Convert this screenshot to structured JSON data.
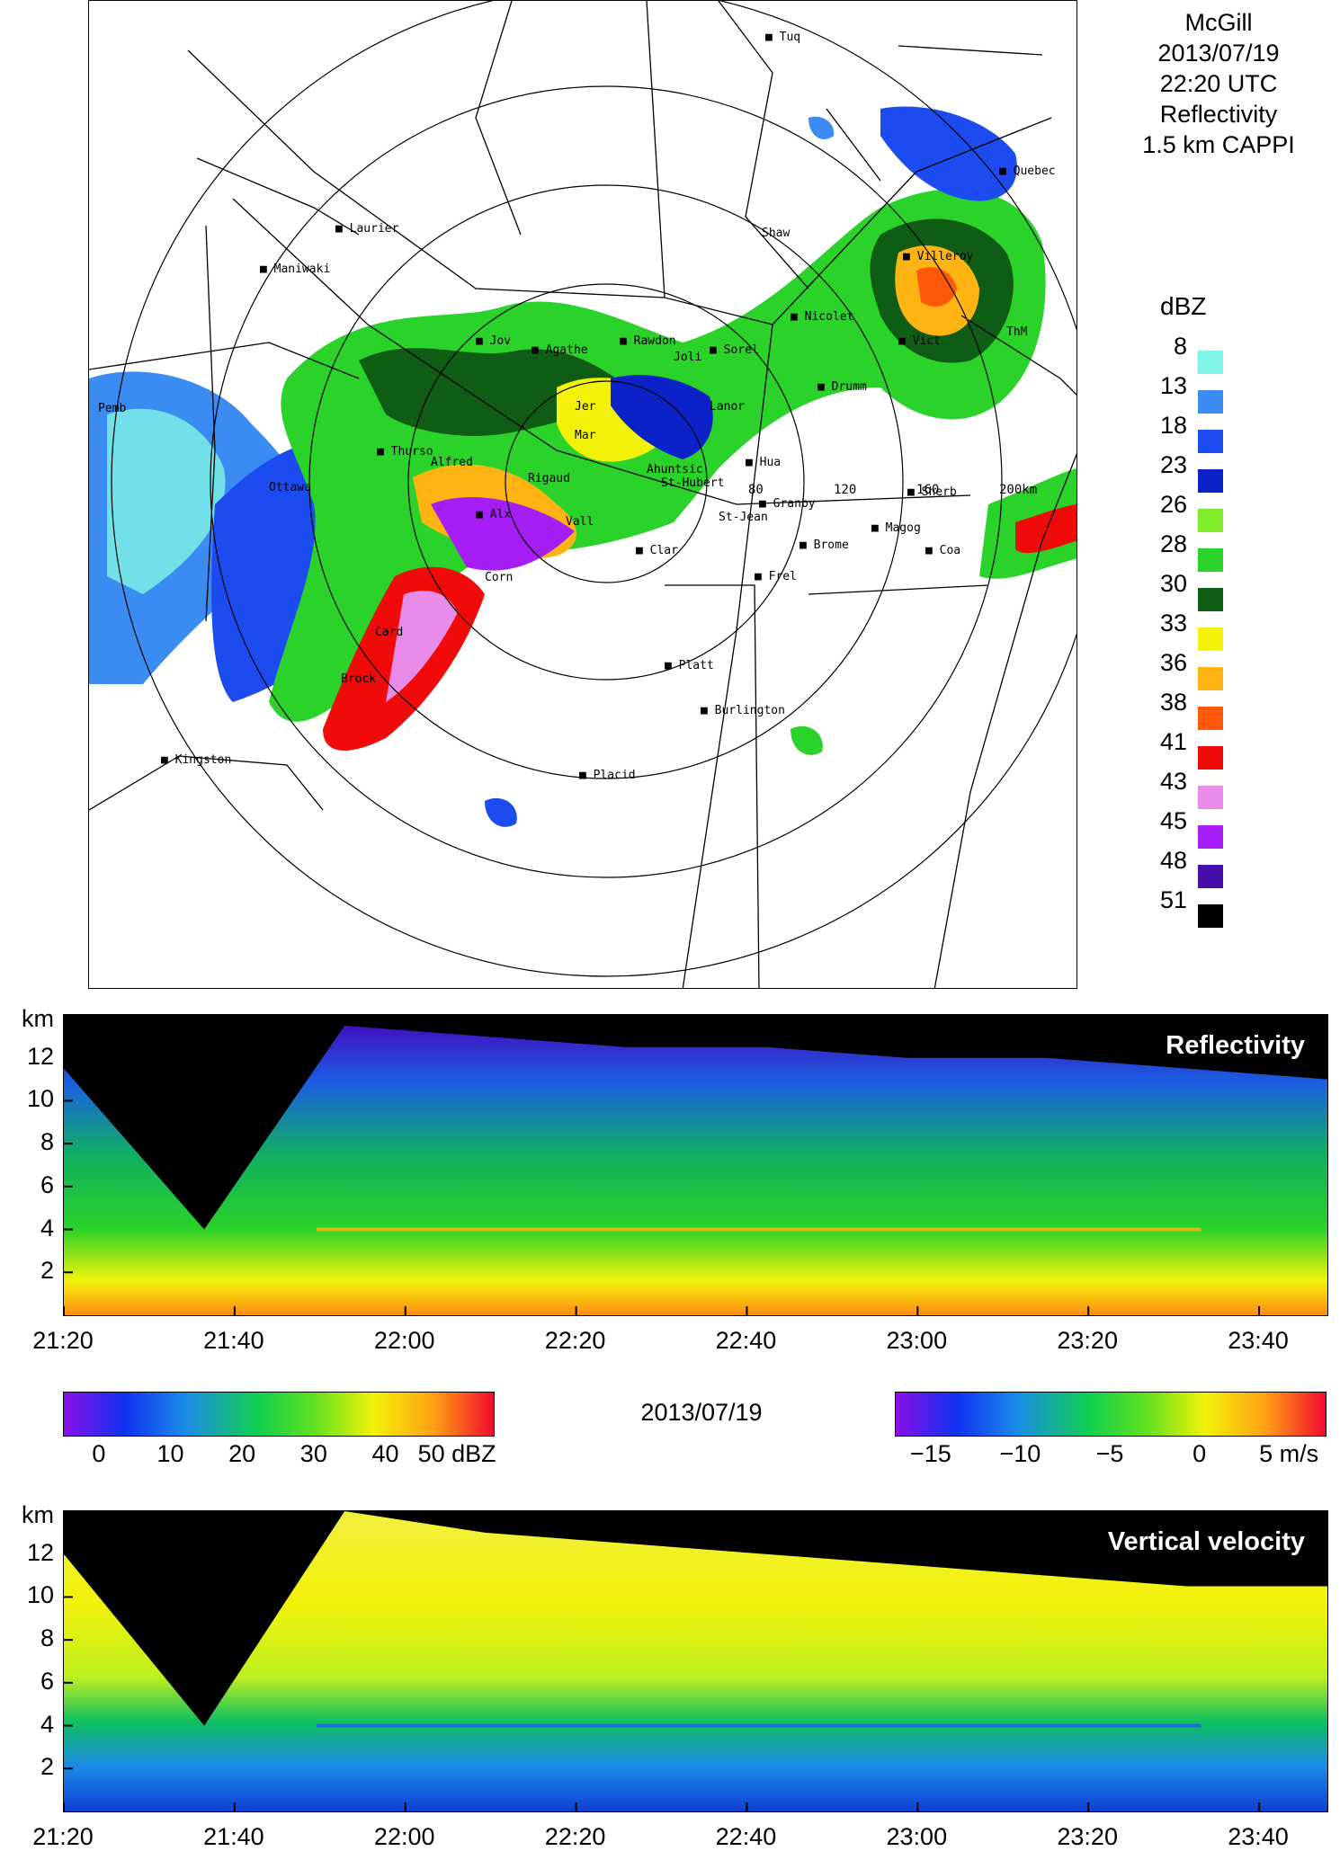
{
  "map": {
    "title_lines": [
      "McGill",
      "2013/07/19",
      "22:20 UTC",
      "Reflectivity",
      "1.5 km CAPPI"
    ],
    "legend_title": "dBZ",
    "legend": [
      {
        "label": "8",
        "color": "#7ff5e6"
      },
      {
        "label": "13",
        "color": "#3a8cf2"
      },
      {
        "label": "18",
        "color": "#1c4cf0"
      },
      {
        "label": "23",
        "color": "#0a22c8"
      },
      {
        "label": "26",
        "color": "#7fec2a"
      },
      {
        "label": "28",
        "color": "#2ad22a"
      },
      {
        "label": "30",
        "color": "#0f5c14"
      },
      {
        "label": "33",
        "color": "#f2f20a"
      },
      {
        "label": "36",
        "color": "#ffb414"
      },
      {
        "label": "38",
        "color": "#ff5a0a"
      },
      {
        "label": "41",
        "color": "#f00a0a"
      },
      {
        "label": "43",
        "color": "#e98ce9"
      },
      {
        "label": "45",
        "color": "#a41ef5"
      },
      {
        "label": "48",
        "color": "#4610a8"
      },
      {
        "label": "51",
        "color": "#000000"
      }
    ],
    "range_labels": [
      "80",
      "120",
      "160",
      "200km"
    ],
    "places": [
      "Tuq",
      "Quebec",
      "Laurier",
      "Maniwaki",
      "Shaw",
      "Villeroy",
      "Jov",
      "Agathe",
      "Rawdon",
      "Joli",
      "Sorel",
      "Nicolet",
      "Vict",
      "ThM",
      "Drumm",
      "Pemb",
      "Jer",
      "Mar",
      "Lanor",
      "Hua",
      "Thurso",
      "Alfred",
      "Ottawa",
      "Rigaud",
      "Ahuntsic",
      "St-Hubert",
      "Sherb",
      "Granby",
      "Alx",
      "Vall",
      "St-Jean",
      "Magog",
      "Brome",
      "Coa",
      "Corn",
      "Clar",
      "Frel",
      "Card",
      "Platt",
      "Brock",
      "Burlington",
      "Kingston",
      "Placid"
    ]
  },
  "panels": {
    "reflectivity_title": "Reflectivity",
    "velocity_title": "Vertical velocity",
    "y_unit": "km",
    "y_ticks": [
      "2",
      "4",
      "6",
      "8",
      "10",
      "12"
    ],
    "x_ticks": [
      "21:20",
      "21:40",
      "22:00",
      "22:20",
      "22:40",
      "23:00",
      "23:20",
      "23:40"
    ],
    "date": "2013/07/19",
    "dbz_ticks": [
      "0",
      "10",
      "20",
      "30",
      "40",
      "50 dBZ"
    ],
    "ms_ticks": [
      "−15",
      "−10",
      "−5",
      "0",
      "5 m/s"
    ]
  },
  "chart_data": [
    {
      "type": "heatmap",
      "title": "Reflectivity",
      "xlabel": "",
      "ylabel": "km",
      "x": [
        "21:20",
        "21:40",
        "22:00",
        "22:20",
        "22:40",
        "23:00",
        "23:20",
        "23:40"
      ],
      "ylim": [
        0,
        14
      ],
      "colorbar_range": [
        -5,
        55
      ],
      "colorbar_units": "dBZ",
      "echo_top_km": [
        11.5,
        4,
        13.5,
        13,
        12.5,
        12.5,
        12,
        12,
        11.5,
        11
      ],
      "melting_layer_km": 4
    },
    {
      "type": "heatmap",
      "title": "Vertical velocity",
      "xlabel": "",
      "ylabel": "km",
      "x": [
        "21:20",
        "21:40",
        "22:00",
        "22:20",
        "22:40",
        "23:00",
        "23:20",
        "23:40"
      ],
      "ylim": [
        0,
        14
      ],
      "colorbar_range": [
        -17,
        7
      ],
      "colorbar_units": "m/s",
      "echo_top_km": [
        12,
        4,
        14,
        13,
        12.5,
        12,
        11.5,
        11,
        10.5,
        10.5
      ],
      "melting_layer_km": 4
    }
  ]
}
